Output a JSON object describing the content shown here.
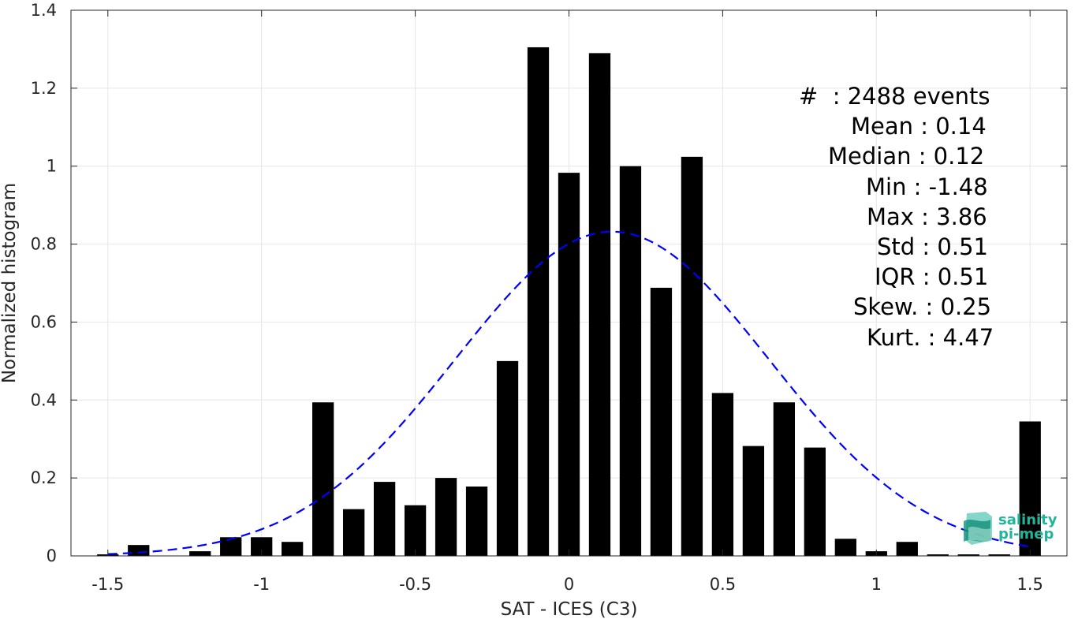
{
  "chart_data": {
    "type": "bar",
    "xlabel": "SAT - ICES (C3)",
    "ylabel": "Normalized histogram",
    "xlim": [
      -1.62,
      1.62
    ],
    "ylim": [
      0,
      1.4
    ],
    "xticks": [
      "-1.5",
      "-1",
      "-0.5",
      "0",
      "0.5",
      "1",
      "1.5"
    ],
    "xtick_values": [
      -1.5,
      -1,
      -0.5,
      0,
      0.5,
      1,
      1.5
    ],
    "yticks": [
      "0",
      "0.2",
      "0.4",
      "0.6",
      "0.8",
      "1",
      "1.2",
      "1.4"
    ],
    "ytick_values": [
      0,
      0.2,
      0.4,
      0.6,
      0.8,
      1.0,
      1.2,
      1.4
    ],
    "grid": true,
    "bar_width": 0.07,
    "bar_color": "#000000",
    "x": [
      -1.5,
      -1.4,
      -1.3,
      -1.2,
      -1.1,
      -1.0,
      -0.9,
      -0.8,
      -0.7,
      -0.6,
      -0.5,
      -0.4,
      -0.3,
      -0.2,
      -0.1,
      0.0,
      0.1,
      0.2,
      0.3,
      0.4,
      0.5,
      0.6,
      0.7,
      0.8,
      0.9,
      1.0,
      1.1,
      1.2,
      1.3,
      1.4,
      1.5
    ],
    "values": [
      0.004,
      0.028,
      0.0,
      0.012,
      0.048,
      0.048,
      0.036,
      0.394,
      0.12,
      0.19,
      0.13,
      0.2,
      0.178,
      0.5,
      1.305,
      0.983,
      1.29,
      1.0,
      0.688,
      1.024,
      0.418,
      0.282,
      0.394,
      0.278,
      0.044,
      0.012,
      0.036,
      0.004,
      0.004,
      0.004,
      0.345
    ],
    "fit_curve": {
      "type": "gaussian",
      "mean": 0.14,
      "std": 0.51,
      "peak": 0.832,
      "x_range": [
        -1.5,
        1.5
      ],
      "color": "#0000ff",
      "style": "dashed"
    }
  },
  "stats": [
    "#  : 2488 events",
    "Mean : 0.14",
    "Median : 0.12",
    "Min : -1.48",
    "Max : 3.86",
    "Std : 0.51",
    "IQR : 0.51",
    "Skew. : 0.25",
    "Kurt. : 4.47"
  ],
  "logo": {
    "line1": "salinity",
    "line2": "pi-mep",
    "color": "#1fb59b"
  }
}
